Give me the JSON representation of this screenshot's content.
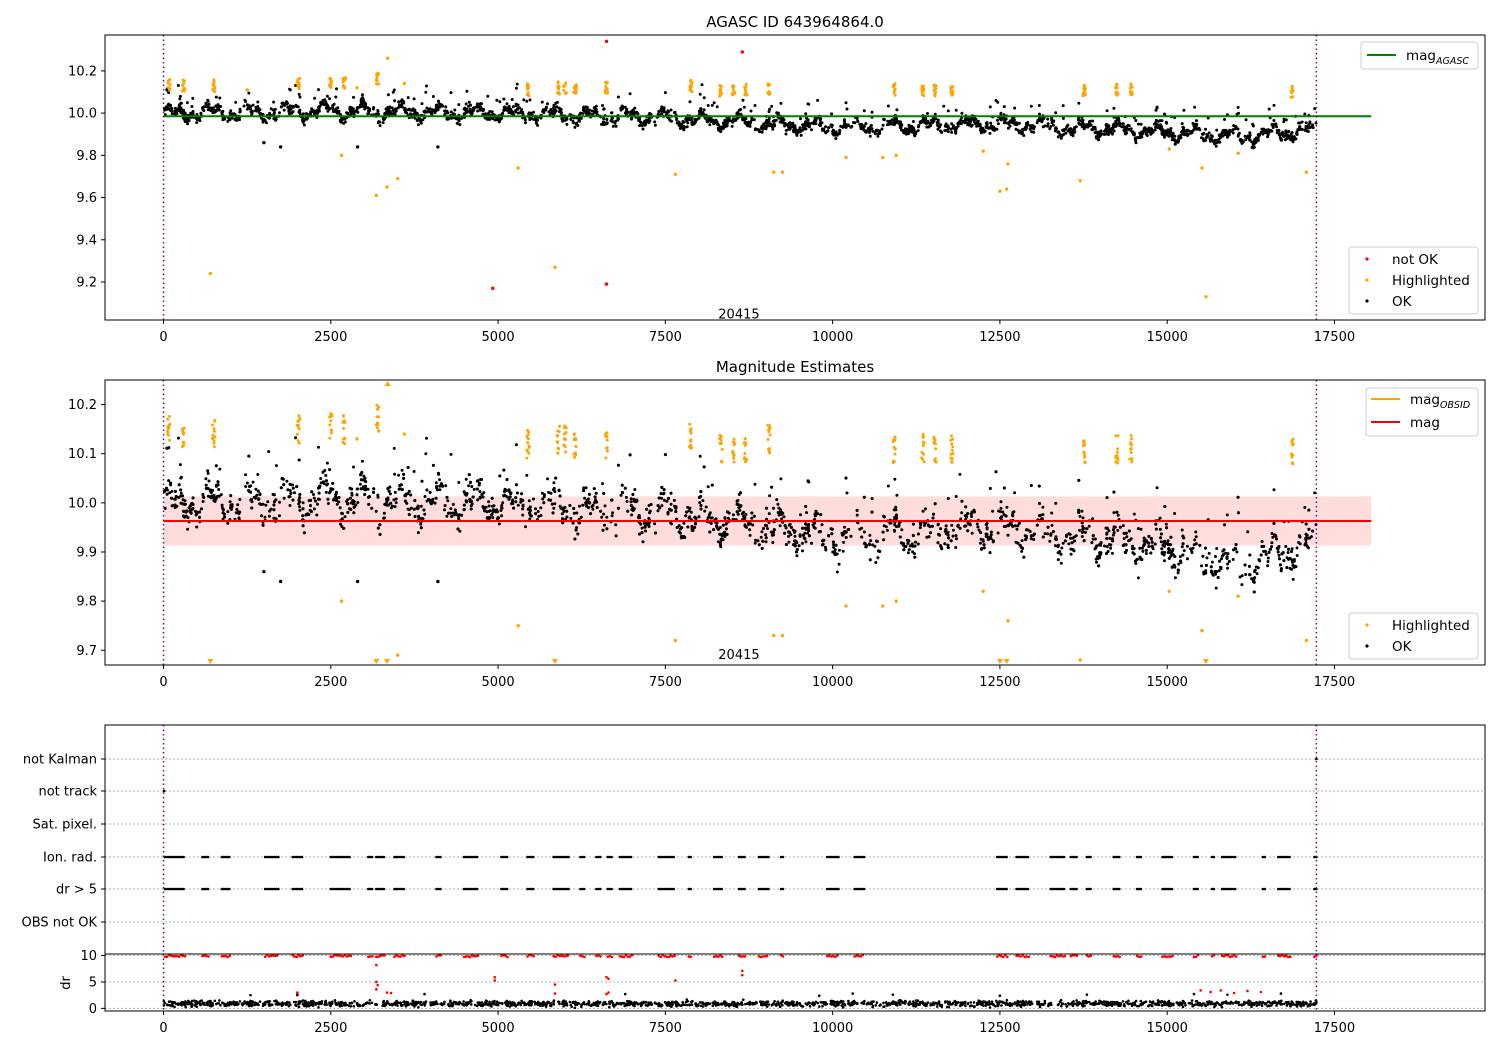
{
  "chart_data": [
    {
      "type": "scatter",
      "title": "AGASC ID 643964864.0",
      "xlabel": "",
      "ylabel": "",
      "xlim": [
        -875,
        19750
      ],
      "ylim": [
        9.02,
        10.37
      ],
      "xticks": [
        0,
        2500,
        5000,
        7500,
        10000,
        12500,
        15000,
        17500
      ],
      "yticks": [
        9.2,
        9.4,
        9.6,
        9.8,
        10.0,
        10.2
      ],
      "vlines": [
        0,
        17230
      ],
      "hline": {
        "name": "mag_AGASC",
        "value": 9.985,
        "x_range": [
          0,
          18050
        ],
        "color": "#008000"
      },
      "annotation": {
        "text": "20415",
        "x": 8600,
        "y": 9.045
      },
      "series": [
        {
          "name": "not OK",
          "color": "#ff0000",
          "points": [
            [
              4920,
              9.17
            ],
            [
              6620,
              9.19
            ],
            [
              6620,
              10.34
            ],
            [
              8650,
              10.29
            ]
          ]
        },
        {
          "name": "Highlighted",
          "color": "#ffa500",
          "points": [
            [
              700,
              9.24
            ],
            [
              3180,
              9.61
            ],
            [
              3340,
              9.65
            ],
            [
              3500,
              9.69
            ],
            [
              2660,
              9.8
            ],
            [
              5300,
              9.74
            ],
            [
              5850,
              9.27
            ],
            [
              7650,
              9.71
            ],
            [
              9120,
              9.72
            ],
            [
              9250,
              9.72
            ],
            [
              10200,
              9.79
            ],
            [
              10750,
              9.79
            ],
            [
              10950,
              9.8
            ],
            [
              12250,
              9.82
            ],
            [
              12500,
              9.63
            ],
            [
              12600,
              9.64
            ],
            [
              12620,
              9.76
            ],
            [
              13700,
              9.68
            ],
            [
              15520,
              9.74
            ],
            [
              15580,
              9.13
            ],
            [
              17080,
              9.72
            ],
            [
              15030,
              9.83
            ],
            [
              16060,
              9.81
            ],
            [
              3350,
              10.26
            ],
            [
              3600,
              10.14
            ],
            [
              1250,
              10.11
            ],
            [
              2890,
              10.12
            ]
          ]
        },
        {
          "name": "OK",
          "color": "#000000",
          "points": [
            [
              1500,
              9.86
            ],
            [
              1750,
              9.84
            ],
            [
              2900,
              9.84
            ],
            [
              4100,
              9.84
            ]
          ]
        }
      ],
      "highlight_clusters": [
        [
          80,
          10.14
        ],
        [
          300,
          10.13
        ],
        [
          750,
          10.13
        ],
        [
          2020,
          10.14
        ],
        [
          2500,
          10.15
        ],
        [
          2700,
          10.14
        ],
        [
          3200,
          10.16
        ],
        [
          5450,
          10.11
        ],
        [
          5900,
          10.12
        ],
        [
          6000,
          10.12
        ],
        [
          6150,
          10.12
        ],
        [
          6620,
          10.12
        ],
        [
          7880,
          10.13
        ],
        [
          8330,
          10.11
        ],
        [
          8520,
          10.11
        ],
        [
          8700,
          10.11
        ],
        [
          9050,
          10.11
        ],
        [
          10920,
          10.11
        ],
        [
          11350,
          10.11
        ],
        [
          11530,
          10.11
        ],
        [
          11780,
          10.11
        ],
        [
          13760,
          10.11
        ],
        [
          14250,
          10.11
        ],
        [
          14460,
          10.11
        ],
        [
          16870,
          10.1
        ]
      ],
      "trend": [
        [
          0,
          10.0
        ],
        [
          2500,
          10.01
        ],
        [
          5000,
          10.0
        ],
        [
          7500,
          9.98
        ],
        [
          10000,
          9.93
        ],
        [
          12500,
          9.95
        ],
        [
          15000,
          9.91
        ],
        [
          16100,
          9.89
        ],
        [
          17200,
          9.92
        ]
      ],
      "legends": [
        {
          "position": "upper-right",
          "entries": [
            {
              "label": "mag",
              "sub": "AGASC",
              "type": "line",
              "color": "#008000"
            }
          ]
        },
        {
          "position": "lower-right",
          "entries": [
            {
              "label": "not OK",
              "type": "dot",
              "color": "#ff0000"
            },
            {
              "label": "Highlighted",
              "type": "dot",
              "color": "#ffa500"
            },
            {
              "label": "OK",
              "type": "dot",
              "color": "#000000"
            }
          ]
        }
      ]
    },
    {
      "type": "scatter",
      "title": "Magnitude Estimates",
      "xlabel": "",
      "ylabel": "",
      "xlim": [
        -875,
        19750
      ],
      "ylim": [
        9.67,
        10.25
      ],
      "xticks": [
        0,
        2500,
        5000,
        7500,
        10000,
        12500,
        15000,
        17500
      ],
      "yticks": [
        9.7,
        9.8,
        9.9,
        10.0,
        10.1,
        10.2
      ],
      "vlines": [
        0,
        17230
      ],
      "band": {
        "lower": 9.913,
        "upper": 10.013,
        "x_range": [
          0,
          18050
        ],
        "color": "#ffdddd"
      },
      "hline": {
        "name": "mag",
        "value": 9.963,
        "x_range": [
          0,
          18050
        ],
        "color": "#ff0000"
      },
      "annotation": {
        "text": "20415",
        "x": 8600,
        "y": 9.69
      },
      "series": [
        {
          "name": "Highlighted",
          "color": "#ffa500",
          "points": [
            [
              2660,
              9.8
            ],
            [
              3500,
              9.69
            ],
            [
              5300,
              9.75
            ],
            [
              7650,
              9.72
            ],
            [
              9120,
              9.73
            ],
            [
              9250,
              9.73
            ],
            [
              10200,
              9.79
            ],
            [
              10750,
              9.79
            ],
            [
              10950,
              9.8
            ],
            [
              12250,
              9.82
            ],
            [
              12620,
              9.76
            ],
            [
              13700,
              9.68
            ],
            [
              15520,
              9.74
            ],
            [
              17080,
              9.72
            ],
            [
              15030,
              9.82
            ],
            [
              16060,
              9.81
            ],
            [
              3600,
              10.14
            ],
            [
              2890,
              10.13
            ]
          ]
        },
        {
          "name": "OK",
          "color": "#000000",
          "points": [
            [
              1500,
              9.86
            ],
            [
              1750,
              9.84
            ],
            [
              2900,
              9.84
            ],
            [
              4100,
              9.84
            ]
          ]
        }
      ],
      "clipped_markers": {
        "bottom": [
          700,
          3180,
          3340,
          5850,
          12500,
          12600,
          15580
        ],
        "top": [
          3350
        ]
      },
      "highlight_clusters": [
        [
          80,
          10.15
        ],
        [
          300,
          10.14
        ],
        [
          750,
          10.14
        ],
        [
          2020,
          10.15
        ],
        [
          2500,
          10.16
        ],
        [
          2700,
          10.15
        ],
        [
          3200,
          10.17
        ],
        [
          5450,
          10.12
        ],
        [
          5900,
          10.13
        ],
        [
          6000,
          10.13
        ],
        [
          6150,
          10.12
        ],
        [
          6620,
          10.12
        ],
        [
          7880,
          10.14
        ],
        [
          8330,
          10.11
        ],
        [
          8520,
          10.11
        ],
        [
          8700,
          10.11
        ],
        [
          9050,
          10.13
        ],
        [
          10920,
          10.11
        ],
        [
          11350,
          10.11
        ],
        [
          11530,
          10.11
        ],
        [
          11780,
          10.11
        ],
        [
          13760,
          10.11
        ],
        [
          14250,
          10.11
        ],
        [
          14460,
          10.11
        ],
        [
          16870,
          10.1
        ]
      ],
      "trend": [
        [
          0,
          10.0
        ],
        [
          2500,
          10.01
        ],
        [
          5000,
          10.0
        ],
        [
          7500,
          9.98
        ],
        [
          10000,
          9.93
        ],
        [
          12500,
          9.95
        ],
        [
          15000,
          9.91
        ],
        [
          16100,
          9.87
        ],
        [
          17200,
          9.92
        ]
      ],
      "legends": [
        {
          "position": "upper-right",
          "entries": [
            {
              "label": "mag",
              "sub": "OBSID",
              "type": "line",
              "color": "#ffa500"
            },
            {
              "label": "mag",
              "sub": "",
              "type": "line",
              "color": "#ff0000"
            }
          ]
        },
        {
          "position": "lower-right",
          "entries": [
            {
              "label": "Highlighted",
              "type": "dot",
              "color": "#ffa500"
            },
            {
              "label": "OK",
              "type": "dot",
              "color": "#000000"
            }
          ]
        }
      ]
    },
    {
      "type": "scatter",
      "title": "",
      "xlabel": "",
      "ylabel": "",
      "xlim": [
        -875,
        19750
      ],
      "categories": [
        "not Kalman",
        "not track",
        "Sat. pixel.",
        "Ion. rad.",
        "dr > 5",
        "OBS not OK"
      ],
      "vlines": [
        0,
        17230
      ],
      "flag_points": {
        "not track": [
          10
        ],
        "not Kalman": [
          17230
        ],
        "Sat. pixel.": []
      },
      "flag_intervals": [
        [
          20,
          320
        ],
        [
          580,
          680
        ],
        [
          870,
          1000
        ],
        [
          1520,
          1720
        ],
        [
          1930,
          2080
        ],
        [
          2500,
          2800
        ],
        [
          3060,
          3130
        ],
        [
          3180,
          3300
        ],
        [
          3450,
          3600
        ],
        [
          4080,
          4150
        ],
        [
          4490,
          4700
        ],
        [
          5050,
          5150
        ],
        [
          5440,
          5530
        ],
        [
          5830,
          6060
        ],
        [
          6230,
          6290
        ],
        [
          6470,
          6550
        ],
        [
          6640,
          6720
        ],
        [
          6820,
          7000
        ],
        [
          7400,
          7640
        ],
        [
          7850,
          7900
        ],
        [
          8230,
          8350
        ],
        [
          8600,
          8700
        ],
        [
          8900,
          9040
        ],
        [
          9230,
          9280
        ],
        [
          9920,
          10090
        ],
        [
          10330,
          10470
        ],
        [
          12460,
          12610
        ],
        [
          12750,
          12930
        ],
        [
          13260,
          13470
        ],
        [
          13560,
          13650
        ],
        [
          13800,
          13860
        ],
        [
          14200,
          14300
        ],
        [
          14550,
          14620
        ],
        [
          14930,
          15080
        ],
        [
          15400,
          15480
        ],
        [
          15670,
          15720
        ],
        [
          15820,
          16040
        ],
        [
          16430,
          16470
        ],
        [
          16660,
          16850
        ],
        [
          17200,
          17230
        ]
      ]
    },
    {
      "type": "scatter",
      "title": "",
      "xlabel": "",
      "ylabel": "dr",
      "xlim": [
        -875,
        19750
      ],
      "ylim": [
        -0.5,
        10.3
      ],
      "xticks": [
        0,
        2500,
        5000,
        7500,
        10000,
        12500,
        15000,
        17500
      ],
      "xtick_labels": [
        "0",
        "2500",
        "5000",
        "7500",
        "10000",
        "12500",
        "15000",
        "17500"
      ],
      "yticks": [
        0,
        5,
        10
      ],
      "ytick_labels": [
        "0",
        "5",
        "10"
      ],
      "vlines": [
        0,
        17230
      ],
      "series": [
        {
          "name": "dr > 5",
          "color": "#ff0000",
          "points": [
            [
              3180,
              8.2
            ],
            [
              3180,
              5.0
            ],
            [
              3200,
              4.4
            ],
            [
              3180,
              3.6
            ],
            [
              3340,
              3.0
            ],
            [
              3400,
              2.9
            ],
            [
              4950,
              5.9
            ],
            [
              4950,
              5.3
            ],
            [
              5850,
              4.5
            ],
            [
              5850,
              2.8
            ],
            [
              6620,
              5.9
            ],
            [
              6650,
              5.6
            ],
            [
              6650,
              3.0
            ],
            [
              6620,
              2.7
            ],
            [
              7650,
              5.3
            ],
            [
              8650,
              7.1
            ],
            [
              8650,
              6.3
            ],
            [
              2000,
              3.0
            ],
            [
              2000,
              2.8
            ],
            [
              15500,
              3.4
            ],
            [
              15650,
              3.1
            ],
            [
              15800,
              3.4
            ],
            [
              16200,
              3.3
            ],
            [
              16400,
              3.1
            ],
            [
              16000,
              2.9
            ]
          ]
        },
        {
          "name": "dr",
          "color": "#000000",
          "points": [
            [
              1300,
              2.5
            ],
            [
              2000,
              2.5
            ],
            [
              3900,
              2.7
            ],
            [
              6900,
              2.7
            ],
            [
              9800,
              2.4
            ],
            [
              10300,
              2.8
            ],
            [
              10900,
              2.6
            ],
            [
              12500,
              2.4
            ],
            [
              13800,
              2.6
            ],
            [
              15400,
              2.7
            ],
            [
              15900,
              2.6
            ],
            [
              16700,
              2.8
            ]
          ]
        }
      ]
    }
  ]
}
